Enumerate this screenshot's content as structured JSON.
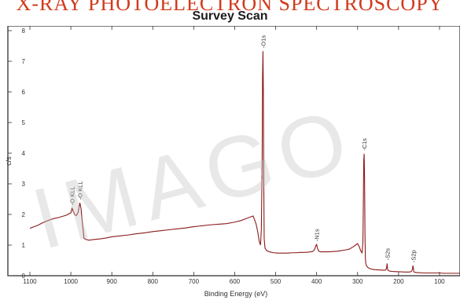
{
  "banner_text": "X-RAY PHOTOELECTRON SPECTROSCOPY",
  "watermark": "IMAGO",
  "chart_data": {
    "type": "line",
    "title": "Survey Scan",
    "xlabel": "Binding Energy (eV)",
    "ylabel": "c/s",
    "xlim": [
      1100,
      50
    ],
    "ylim": [
      0,
      8
    ],
    "x_reversed": true,
    "x_ticks": [
      1100,
      1000,
      900,
      800,
      700,
      600,
      500,
      400,
      300,
      200,
      100
    ],
    "y_ticks": [
      0,
      1,
      2,
      3,
      4,
      5,
      6,
      7,
      8
    ],
    "series": [
      {
        "color": "#8b1a1a",
        "x": [
          1100,
          1090,
          1080,
          1070,
          1060,
          1050,
          1040,
          1030,
          1020,
          1010,
          1005,
          1000,
          997,
          994,
          990,
          986,
          982,
          978,
          975,
          972,
          968,
          962,
          955,
          945,
          930,
          915,
          900,
          880,
          860,
          840,
          820,
          800,
          780,
          760,
          740,
          720,
          700,
          680,
          660,
          640,
          620,
          600,
          585,
          575,
          565,
          555,
          548,
          544,
          540,
          537,
          535,
          533,
          532,
          531,
          530,
          529,
          528,
          526,
          522,
          515,
          505,
          495,
          480,
          470,
          460,
          450,
          440,
          430,
          420,
          410,
          405,
          402,
          400,
          398,
          395,
          390,
          380,
          370,
          360,
          350,
          340,
          330,
          320,
          310,
          305,
          300,
          296,
          292,
          289,
          287,
          286,
          285,
          284,
          283,
          282,
          281,
          280,
          278,
          275,
          270,
          260,
          250,
          240,
          232,
          230,
          229,
          228,
          227,
          226,
          222,
          215,
          200,
          185,
          175,
          170,
          168,
          166,
          165,
          164,
          163,
          162,
          160,
          155,
          150,
          140,
          130,
          120,
          110,
          100,
          90,
          80,
          70,
          60,
          50
        ],
        "values": [
          1.55,
          1.6,
          1.65,
          1.72,
          1.78,
          1.83,
          1.87,
          1.9,
          1.94,
          1.98,
          2.02,
          2.05,
          2.2,
          2.1,
          1.98,
          1.97,
          2.08,
          2.38,
          2.18,
          1.75,
          1.22,
          1.18,
          1.16,
          1.18,
          1.2,
          1.23,
          1.27,
          1.3,
          1.33,
          1.37,
          1.4,
          1.44,
          1.47,
          1.5,
          1.53,
          1.56,
          1.6,
          1.63,
          1.66,
          1.68,
          1.7,
          1.75,
          1.8,
          1.85,
          1.9,
          1.95,
          1.7,
          1.45,
          1.12,
          1.0,
          1.5,
          3.6,
          6.5,
          7.33,
          6.0,
          3.0,
          1.2,
          0.9,
          0.82,
          0.78,
          0.75,
          0.74,
          0.74,
          0.74,
          0.75,
          0.75,
          0.76,
          0.76,
          0.77,
          0.79,
          0.85,
          0.98,
          1.02,
          0.9,
          0.8,
          0.78,
          0.78,
          0.78,
          0.79,
          0.8,
          0.82,
          0.84,
          0.87,
          0.95,
          1.0,
          1.05,
          0.95,
          0.8,
          0.75,
          1.1,
          2.3,
          3.75,
          3.98,
          3.2,
          1.4,
          0.58,
          0.4,
          0.32,
          0.27,
          0.23,
          0.2,
          0.19,
          0.18,
          0.18,
          0.22,
          0.28,
          0.4,
          0.25,
          0.18,
          0.15,
          0.14,
          0.13,
          0.12,
          0.12,
          0.13,
          0.15,
          0.22,
          0.33,
          0.27,
          0.15,
          0.12,
          0.11,
          0.1,
          0.1,
          0.09,
          0.09,
          0.09,
          0.09,
          0.09,
          0.08,
          0.08,
          0.08,
          0.08,
          0.08
        ]
      }
    ],
    "annotations": [
      {
        "text": "O KLL",
        "x": 997,
        "y": 2.2
      },
      {
        "text": "O KLL",
        "x": 978,
        "y": 2.38
      },
      {
        "text": "O1s",
        "x": 531,
        "y": 7.33
      },
      {
        "text": "N1s",
        "x": 400,
        "y": 1.02
      },
      {
        "text": "C1s",
        "x": 284,
        "y": 3.98
      },
      {
        "text": "S2s",
        "x": 228,
        "y": 0.4
      },
      {
        "text": "S2p",
        "x": 164,
        "y": 0.33
      }
    ]
  }
}
